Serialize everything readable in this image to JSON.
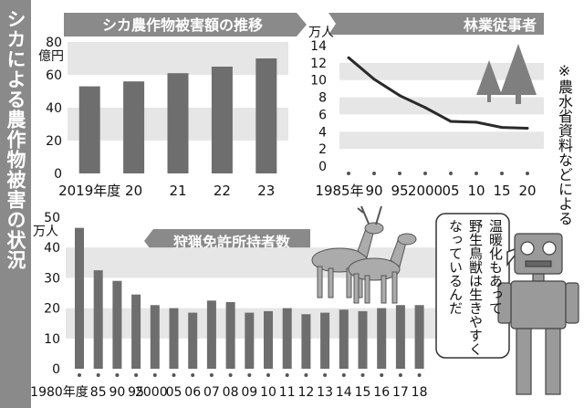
{
  "colors": {
    "bar": "#6e6e6e",
    "band": "#e6e6e6",
    "banner": "#8a8a8a",
    "banner_text": "#ffffff",
    "line": "#2a2a2a",
    "text": "#111111",
    "tree": "#7f7f7f"
  },
  "page_title": "シカによる農作物被害の状況",
  "note": "※農水省資料などによる",
  "speech": [
    "温暖化もあって",
    "野生鳥獣は生きやすく",
    "なっているんだ"
  ],
  "chart_data": [
    {
      "type": "bar",
      "title": "シカ農作物被害額の推移",
      "unit": "億円",
      "categories": [
        "2019年度",
        "20",
        "21",
        "22",
        "23"
      ],
      "values": [
        53,
        56,
        61,
        65,
        70
      ],
      "ylim": [
        0,
        80
      ],
      "yticks": [
        "0",
        "20",
        "40",
        "60",
        "80"
      ]
    },
    {
      "type": "line",
      "title": "林業従事者",
      "unit": "万人",
      "categories": [
        "1985年",
        "90",
        "95",
        "2000",
        "05",
        "10",
        "15",
        "20"
      ],
      "values": [
        12.6,
        10.1,
        8.2,
        6.8,
        5.2,
        5.1,
        4.5,
        4.4
      ],
      "ylim": [
        0,
        14
      ],
      "yticks": [
        "0",
        "2",
        "4",
        "6",
        "8",
        "10",
        "12",
        "14"
      ]
    },
    {
      "type": "bar",
      "title": "狩猟免許所持者数",
      "unit": "万人",
      "categories": [
        "1980年度",
        "85",
        "90",
        "95",
        "2000",
        "05",
        "06",
        "07",
        "08",
        "09",
        "10",
        "11",
        "12",
        "13",
        "14",
        "15",
        "16",
        "17",
        "18"
      ],
      "values": [
        46.5,
        32.5,
        29,
        24.5,
        21,
        20,
        18.5,
        22.5,
        22,
        18.5,
        19,
        20,
        18,
        18.5,
        19.5,
        19,
        20,
        21,
        21
      ],
      "ylim": [
        0,
        50
      ],
      "yticks": [
        "0",
        "10",
        "20",
        "30",
        "40",
        "50"
      ]
    }
  ]
}
